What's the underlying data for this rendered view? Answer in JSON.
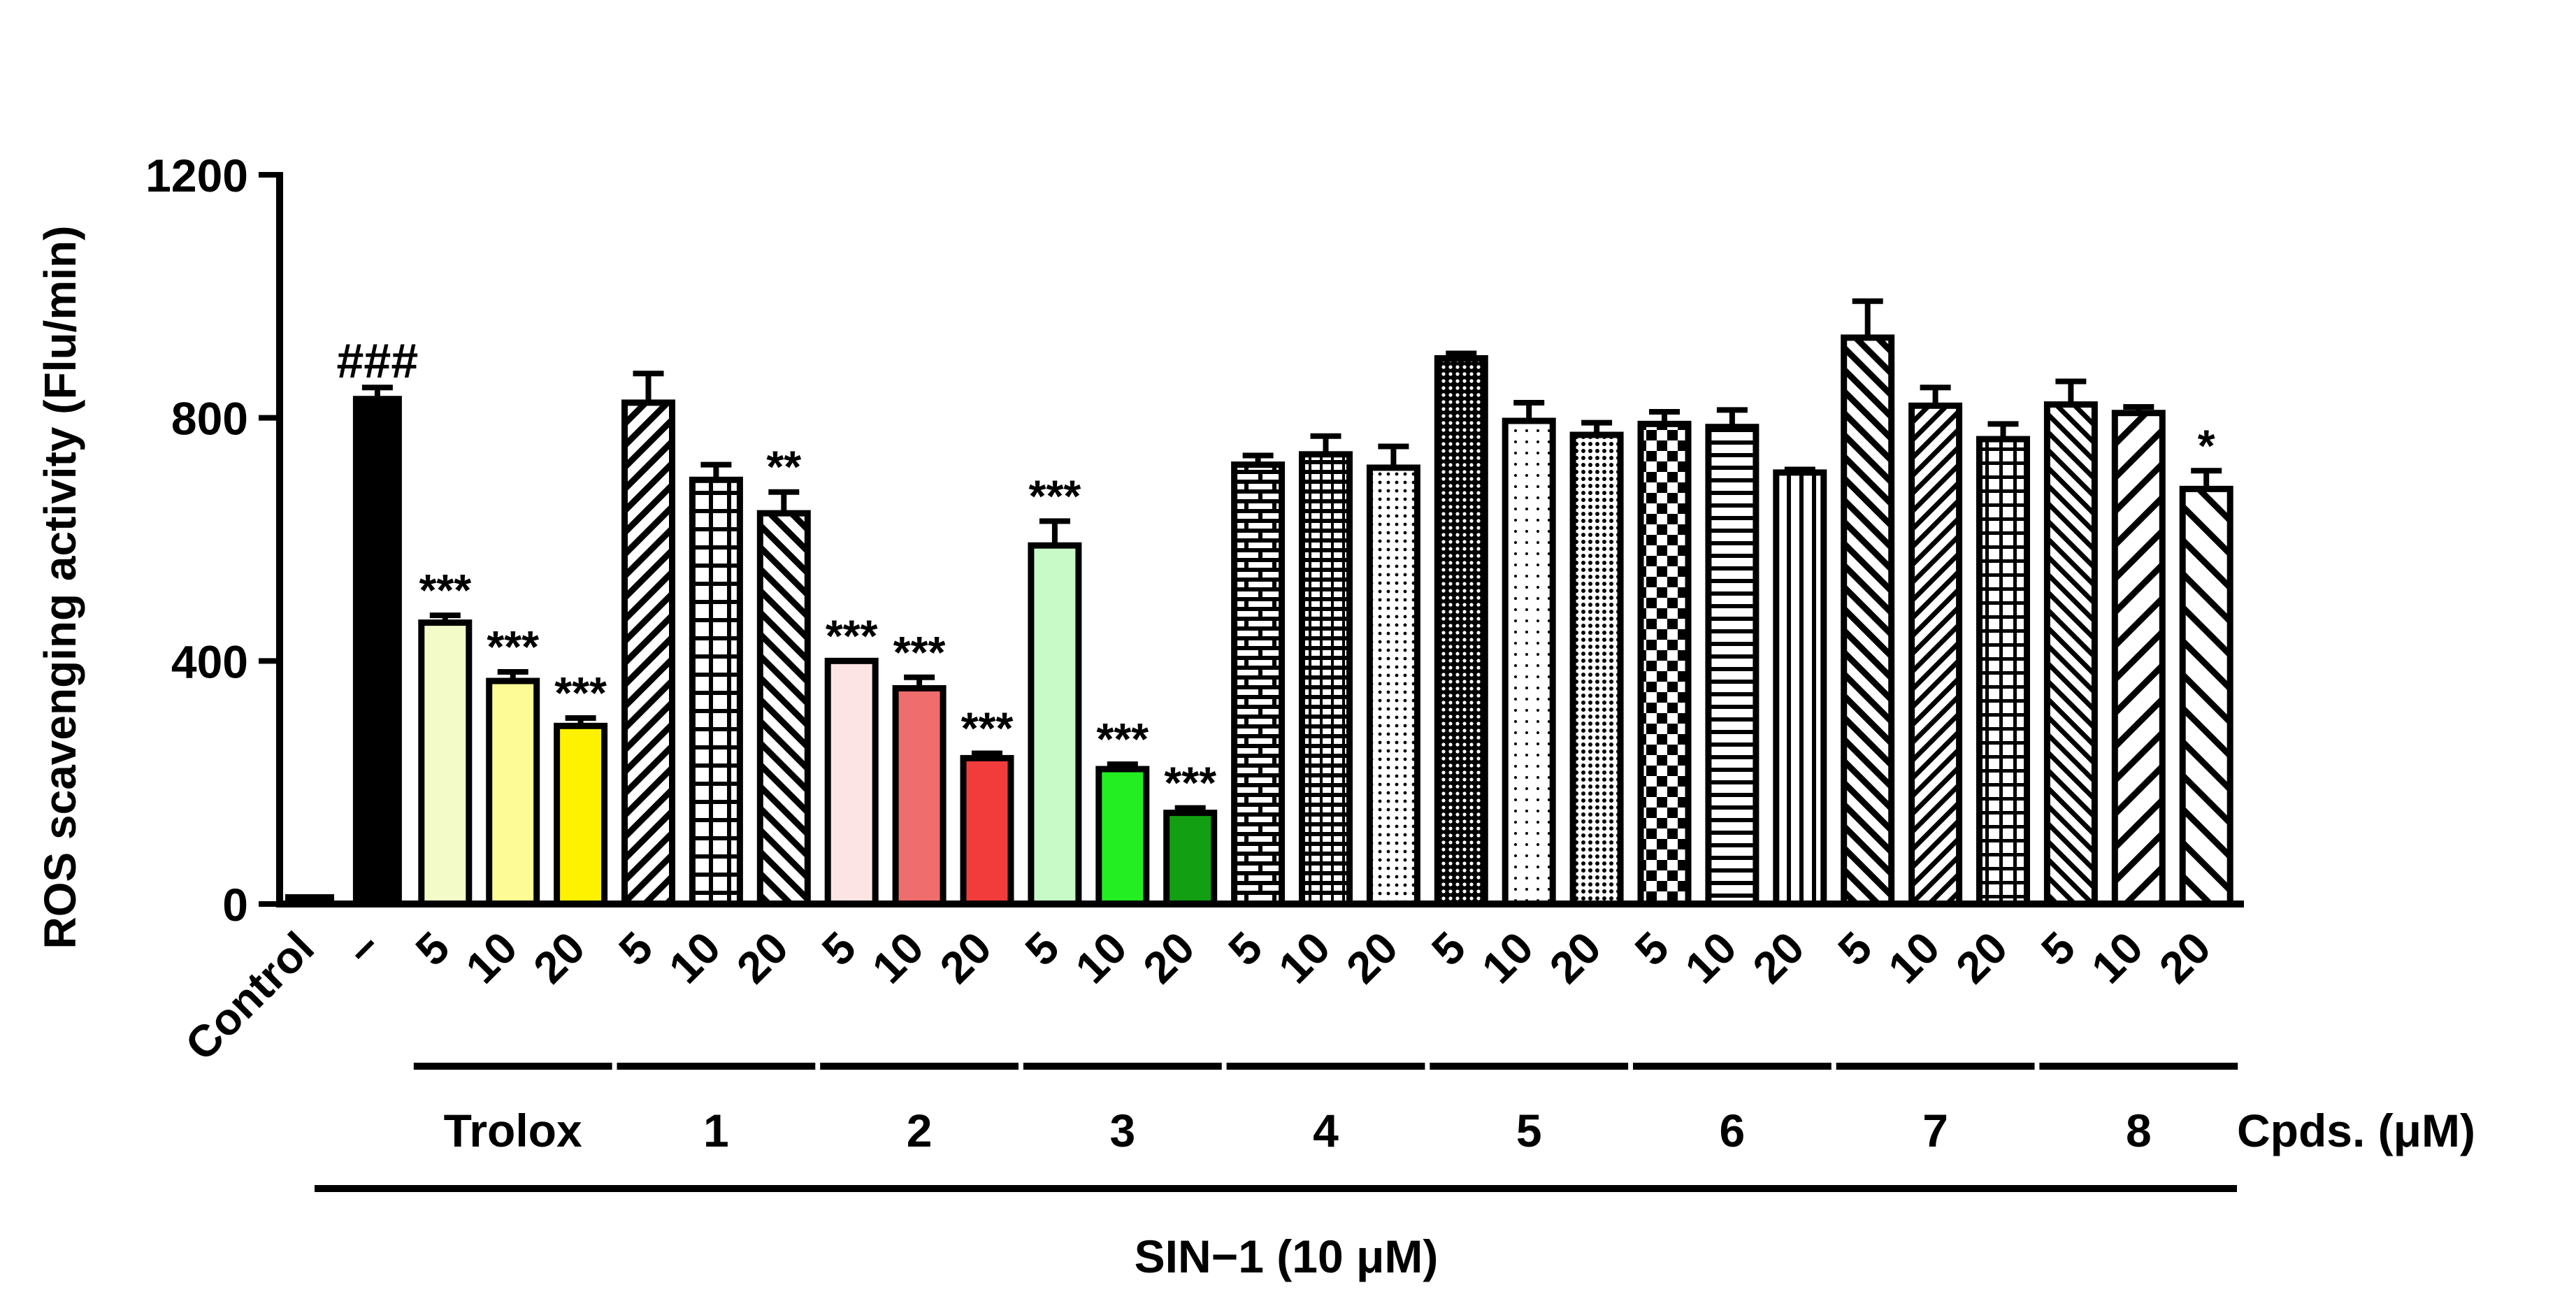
{
  "chart_data": {
    "type": "bar",
    "ylabel": "ROS scavenging activity (Flu/min)",
    "ylim": [
      0,
      1200
    ],
    "yticks": [
      0,
      400,
      800,
      1200
    ],
    "xlabel_treatment": "SIN−1 (10 μM)",
    "compound_axis_label": "Cpds. (μM)",
    "bars": [
      {
        "label": "Control",
        "value": 15,
        "error": 0,
        "sig": "",
        "group": null,
        "fill": "solid",
        "color": "#000000"
      },
      {
        "label": "−",
        "value": 835,
        "error": 15,
        "sig": "###",
        "group": null,
        "fill": "solid",
        "color": "#000000"
      },
      {
        "label": "5",
        "value": 463,
        "error": 12,
        "sig": "***",
        "group": "Trolox",
        "fill": "solid",
        "color": "#f3fbc8"
      },
      {
        "label": "10",
        "value": 367,
        "error": 15,
        "sig": "***",
        "group": "Trolox",
        "fill": "solid",
        "color": "#fdfb96"
      },
      {
        "label": "20",
        "value": 293,
        "error": 13,
        "sig": "***",
        "group": "Trolox",
        "fill": "solid",
        "color": "#fff200"
      },
      {
        "label": "5",
        "value": 825,
        "error": 48,
        "sig": "",
        "group": "1",
        "fill": "diag-right",
        "color": "#000000"
      },
      {
        "label": "10",
        "value": 698,
        "error": 25,
        "sig": "",
        "group": "1",
        "fill": "grid",
        "color": "#000000"
      },
      {
        "label": "20",
        "value": 643,
        "error": 35,
        "sig": "**",
        "group": "1",
        "fill": "diag-left",
        "color": "#000000"
      },
      {
        "label": "5",
        "value": 400,
        "error": 0,
        "sig": "***",
        "group": "2",
        "fill": "solid",
        "color": "#fde4e4"
      },
      {
        "label": "10",
        "value": 355,
        "error": 18,
        "sig": "***",
        "group": "2",
        "fill": "solid",
        "color": "#ef6d6d"
      },
      {
        "label": "20",
        "value": 240,
        "error": 8,
        "sig": "***",
        "group": "2",
        "fill": "solid",
        "color": "#f23c3c"
      },
      {
        "label": "5",
        "value": 590,
        "error": 40,
        "sig": "***",
        "group": "3",
        "fill": "solid",
        "color": "#c8fac8"
      },
      {
        "label": "10",
        "value": 222,
        "error": 8,
        "sig": "***",
        "group": "3",
        "fill": "solid",
        "color": "#22ee22"
      },
      {
        "label": "20",
        "value": 150,
        "error": 8,
        "sig": "***",
        "group": "3",
        "fill": "solid",
        "color": "#12a012"
      },
      {
        "label": "5",
        "value": 723,
        "error": 15,
        "sig": "",
        "group": "4",
        "fill": "brick",
        "color": "#000000"
      },
      {
        "label": "10",
        "value": 740,
        "error": 30,
        "sig": "",
        "group": "4",
        "fill": "dense-h",
        "color": "#000000"
      },
      {
        "label": "20",
        "value": 718,
        "error": 35,
        "sig": "",
        "group": "4",
        "fill": "dots-light",
        "color": "#000000"
      },
      {
        "label": "5",
        "value": 898,
        "error": 8,
        "sig": "",
        "group": "5",
        "fill": "dots-dense",
        "color": "#000000"
      },
      {
        "label": "10",
        "value": 795,
        "error": 30,
        "sig": "",
        "group": "5",
        "fill": "dots-sparse",
        "color": "#000000"
      },
      {
        "label": "20",
        "value": 772,
        "error": 20,
        "sig": "",
        "group": "5",
        "fill": "dots-medium",
        "color": "#000000"
      },
      {
        "label": "5",
        "value": 790,
        "error": 20,
        "sig": "",
        "group": "6",
        "fill": "checker",
        "color": "#000000"
      },
      {
        "label": "10",
        "value": 785,
        "error": 28,
        "sig": "",
        "group": "6",
        "fill": "hlines",
        "color": "#000000"
      },
      {
        "label": "20",
        "value": 710,
        "error": 5,
        "sig": "",
        "group": "6",
        "fill": "vlines",
        "color": "#000000"
      },
      {
        "label": "5",
        "value": 932,
        "error": 60,
        "sig": "",
        "group": "7",
        "fill": "diag-left",
        "color": "#000000"
      },
      {
        "label": "10",
        "value": 820,
        "error": 30,
        "sig": "",
        "group": "7",
        "fill": "diag-right-fine",
        "color": "#000000"
      },
      {
        "label": "20",
        "value": 765,
        "error": 25,
        "sig": "",
        "group": "7",
        "fill": "grid-fine",
        "color": "#000000"
      },
      {
        "label": "5",
        "value": 822,
        "error": 38,
        "sig": "",
        "group": "8",
        "fill": "diag-left-fine",
        "color": "#000000"
      },
      {
        "label": "10",
        "value": 808,
        "error": 10,
        "sig": "",
        "group": "8",
        "fill": "diag-right-wide",
        "color": "#000000"
      },
      {
        "label": "20",
        "value": 683,
        "error": 30,
        "sig": "*",
        "group": "8",
        "fill": "diag-left-wide",
        "color": "#000000"
      }
    ],
    "groups": [
      "Trolox",
      "1",
      "2",
      "3",
      "4",
      "5",
      "6",
      "7",
      "8"
    ]
  }
}
